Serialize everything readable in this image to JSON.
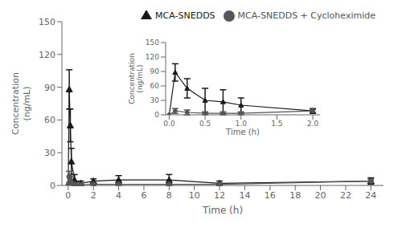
{
  "chart_data": [
    {
      "type": "line",
      "x_label": "Time (h)",
      "y_label": "Concentration\n(ng/mL)",
      "x": [
        0,
        0.083,
        0.167,
        0.25,
        0.5,
        1.0,
        2.0,
        4.0,
        8.0,
        12.0,
        24.0
      ],
      "series": [
        {
          "name": "MCA-SNEDDS",
          "color": "#1a1a1a",
          "marker": "triangle",
          "values": [
            0,
            88,
            55,
            22,
            5,
            2,
            4,
            5,
            5,
            2,
            4
          ],
          "errors": [
            0,
            18,
            15,
            12,
            5,
            2,
            2,
            4,
            5,
            2,
            3
          ]
        },
        {
          "name": "MCA-SNEDDS + Cycloheximide",
          "color": "#555555",
          "marker": "circle",
          "values": [
            0,
            8,
            5,
            2,
            1,
            0.5,
            1,
            1,
            1,
            1,
            4
          ],
          "errors": [
            0,
            5,
            3,
            1,
            1,
            0.5,
            1,
            1,
            1,
            1,
            2
          ]
        }
      ],
      "xlim": [
        -0.5,
        25
      ],
      "ylim": [
        0,
        150
      ],
      "yticks": [
        0,
        30,
        60,
        90,
        120,
        150
      ],
      "xticks": [
        0,
        2,
        4,
        6,
        8,
        10,
        12,
        14,
        16,
        18,
        20,
        22,
        24
      ],
      "legend": "upper right",
      "grid": false
    },
    {
      "type": "line",
      "x_label": "Time (h)",
      "y_label": "Concentration\n(ng/mL)",
      "x": [
        0,
        0.083,
        0.25,
        0.5,
        0.75,
        1.0,
        2.0
      ],
      "series": [
        {
          "color": "#1a1a1a",
          "marker": "triangle",
          "values": [
            0,
            88,
            55,
            30,
            27,
            20,
            8
          ],
          "errors": [
            0,
            18,
            20,
            25,
            25,
            15,
            5
          ]
        },
        {
          "color": "#555555",
          "marker": "circle",
          "values": [
            0,
            8,
            5,
            3,
            3,
            3,
            8
          ],
          "errors": [
            0,
            5,
            5,
            3,
            3,
            3,
            3
          ]
        }
      ],
      "xlim": [
        -0.05,
        2.1
      ],
      "ylim": [
        0,
        150
      ],
      "yticks": [
        0,
        30,
        60,
        90,
        120,
        150
      ],
      "xticks": [
        {
          "value": 0,
          "label": "0.0"
        },
        0.5,
        {
          "value": 1,
          "label": "1.0"
        },
        1.5,
        {
          "value": 2,
          "label": "2.0"
        }
      ],
      "grid": false
    }
  ]
}
